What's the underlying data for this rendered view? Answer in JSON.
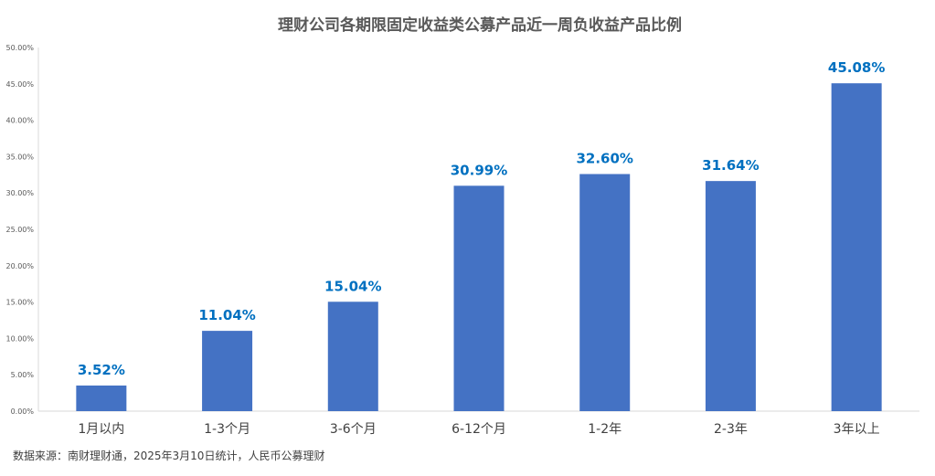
{
  "chart_data": {
    "type": "bar",
    "title": "理财公司各期限固定收益类公募产品近一周负收益产品比例",
    "xlabel": "",
    "ylabel": "",
    "categories": [
      "1月以内",
      "1-3个月",
      "3-6个月",
      "6-12个月",
      "1-2年",
      "2-3年",
      "3年以上"
    ],
    "values": [
      3.52,
      11.04,
      15.04,
      30.99,
      32.6,
      31.64,
      45.08
    ],
    "data_labels": [
      "3.52%",
      "11.04%",
      "15.04%",
      "30.99%",
      "32.60%",
      "31.64%",
      "45.08%"
    ],
    "ylim": [
      0,
      50
    ],
    "yticks": [
      0,
      5,
      10,
      15,
      20,
      25,
      30,
      35,
      40,
      45,
      50
    ],
    "ytick_labels": [
      "0.00%",
      "5.00%",
      "10.00%",
      "15.00%",
      "20.00%",
      "25.00%",
      "30.00%",
      "35.00%",
      "40.00%",
      "45.00%",
      "50.00%"
    ],
    "grid": false,
    "bar_color": "#4472c4",
    "label_color": "#0070c0",
    "source": "数据来源：南财理财通，2025年3月10日统计，人民币公募理财"
  }
}
